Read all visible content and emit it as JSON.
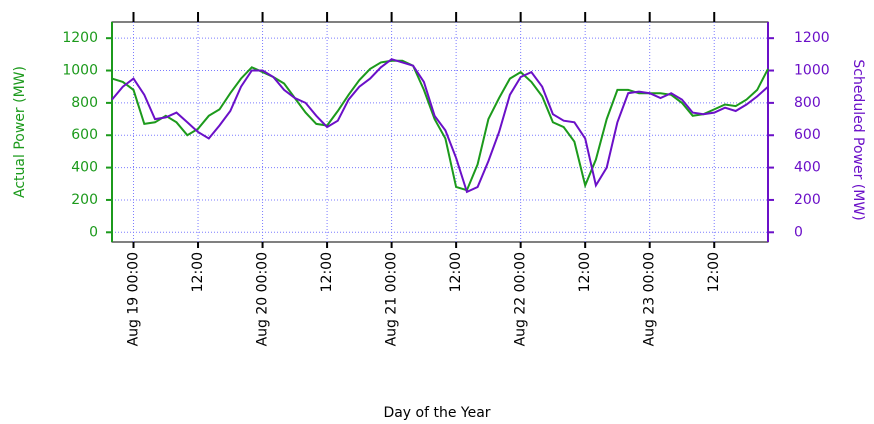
{
  "chart_data": {
    "type": "line",
    "xlabel": "Day of the Year",
    "ylabel": "Actual Power (MW)",
    "y2label": "Scheduled Power (MW)",
    "x": [
      "Aug 18 20:00",
      "Aug 18 22:00",
      "Aug 19 00:00",
      "Aug 19 02:00",
      "Aug 19 04:00",
      "Aug 19 06:00",
      "Aug 19 08:00",
      "Aug 19 10:00",
      "Aug 19 12:00",
      "Aug 19 14:00",
      "Aug 19 16:00",
      "Aug 19 18:00",
      "Aug 19 20:00",
      "Aug 19 22:00",
      "Aug 20 00:00",
      "Aug 20 02:00",
      "Aug 20 04:00",
      "Aug 20 06:00",
      "Aug 20 08:00",
      "Aug 20 10:00",
      "Aug 20 12:00",
      "Aug 20 14:00",
      "Aug 20 16:00",
      "Aug 20 18:00",
      "Aug 20 20:00",
      "Aug 20 22:00",
      "Aug 21 00:00",
      "Aug 21 02:00",
      "Aug 21 04:00",
      "Aug 21 06:00",
      "Aug 21 08:00",
      "Aug 21 10:00",
      "Aug 21 12:00",
      "Aug 21 14:00",
      "Aug 21 16:00",
      "Aug 21 18:00",
      "Aug 21 20:00",
      "Aug 21 22:00",
      "Aug 22 00:00",
      "Aug 22 02:00",
      "Aug 22 04:00",
      "Aug 22 06:00",
      "Aug 22 08:00",
      "Aug 22 10:00",
      "Aug 22 12:00",
      "Aug 22 14:00",
      "Aug 22 16:00",
      "Aug 22 18:00",
      "Aug 22 20:00",
      "Aug 22 22:00",
      "Aug 23 00:00",
      "Aug 23 02:00",
      "Aug 23 04:00",
      "Aug 23 06:00",
      "Aug 23 08:00",
      "Aug 23 10:00",
      "Aug 23 12:00",
      "Aug 23 14:00",
      "Aug 23 16:00",
      "Aug 23 18:00",
      "Aug 23 20:00",
      "Aug 23 22:00"
    ],
    "series": [
      {
        "name": "Actual Power",
        "color": "#1c9a1c",
        "axis": "y",
        "values": [
          950,
          930,
          880,
          670,
          680,
          720,
          680,
          600,
          640,
          720,
          760,
          860,
          950,
          1020,
          990,
          960,
          920,
          830,
          740,
          670,
          660,
          750,
          850,
          940,
          1010,
          1050,
          1060,
          1060,
          1030,
          880,
          700,
          580,
          280,
          260,
          420,
          700,
          830,
          950,
          990,
          930,
          840,
          680,
          650,
          560,
          290,
          450,
          700,
          880,
          880,
          860,
          860,
          860,
          850,
          800,
          720,
          730,
          760,
          790,
          780,
          820,
          880,
          1010
        ]
      },
      {
        "name": "Scheduled Power",
        "color": "#6b10c8",
        "axis": "y2",
        "values": [
          820,
          900,
          950,
          850,
          700,
          710,
          740,
          680,
          620,
          580,
          660,
          750,
          900,
          1000,
          1000,
          960,
          880,
          830,
          800,
          720,
          650,
          690,
          820,
          900,
          950,
          1020,
          1070,
          1050,
          1030,
          930,
          720,
          630,
          460,
          250,
          280,
          440,
          620,
          850,
          960,
          990,
          900,
          730,
          690,
          680,
          580,
          290,
          400,
          680,
          860,
          870,
          860,
          830,
          860,
          820,
          740,
          730,
          740,
          770,
          750,
          790,
          840,
          900
        ]
      }
    ],
    "xlim": [
      "Aug 18 20:00",
      "Aug 23 22:00"
    ],
    "xticks": [
      "Aug 19 00:00",
      {
        "value": "Aug 19 12:00",
        "label": "12:00"
      },
      "Aug 20 00:00",
      {
        "value": "Aug 20 12:00",
        "label": "12:00"
      },
      "Aug 21 00:00",
      {
        "value": "Aug 21 12:00",
        "label": "12:00"
      },
      "Aug 22 00:00",
      {
        "value": "Aug 22 12:00",
        "label": "12:00"
      },
      "Aug 23 00:00",
      {
        "value": "Aug 23 12:00",
        "label": "12:00"
      }
    ],
    "ylim": [
      -60,
      1300
    ],
    "yticks": [
      0,
      200,
      400,
      600,
      800,
      1000,
      1200
    ],
    "y2lim": [
      -60,
      1300
    ],
    "y2ticks": [
      0,
      200,
      400,
      600,
      800,
      1000,
      1200
    ],
    "grid": true
  }
}
